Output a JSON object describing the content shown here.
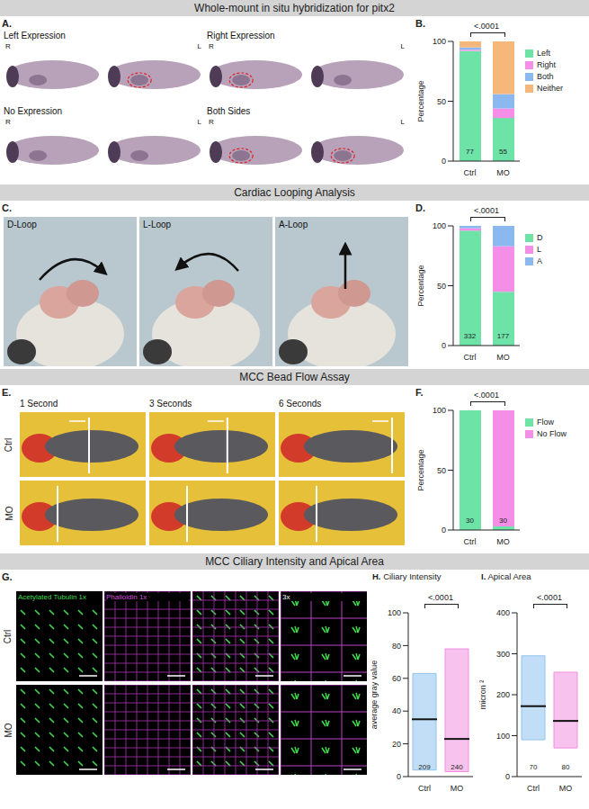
{
  "sections": [
    "Whole-mount in situ hybridization for pitx2",
    "Cardiac Looping Analysis",
    "MCC Bead Flow Assay",
    "MCC Ciliary Intensity and Apical Area"
  ],
  "panel_a": {
    "letter": "A.",
    "images": [
      "Left Expression",
      "Right Expression",
      "No Expression",
      "Both Sides"
    ],
    "left_side": "R",
    "right_side": "L"
  },
  "panel_c": {
    "letter": "C.",
    "images": [
      "D-Loop",
      "L-Loop",
      "A-Loop"
    ]
  },
  "panel_e": {
    "letter": "E.",
    "columns": [
      "1 Second",
      "3 Seconds",
      "6 Seconds"
    ],
    "rows": [
      "Ctrl",
      "MO"
    ]
  },
  "panel_g": {
    "letter": "G.",
    "labels": [
      "Acetylated Tubulin 1x",
      "Phalloidin 1x",
      "3x"
    ],
    "rows": [
      "Ctrl",
      "MO"
    ]
  },
  "chart_data": [
    {
      "letter": "B.",
      "type": "bar",
      "stacked": true,
      "categories": [
        "Ctrl",
        "MO"
      ],
      "n": [
        77,
        55
      ],
      "p_value": "<.0001",
      "ylabel": "Percentage",
      "ylim": [
        0,
        100
      ],
      "yticks": [
        0,
        50,
        100
      ],
      "grid": false,
      "legend": "right",
      "series": [
        {
          "name": "Left",
          "color": "#6ee3a8",
          "values": [
            92,
            36
          ]
        },
        {
          "name": "Right",
          "color": "#f58ee6",
          "values": [
            1,
            8
          ]
        },
        {
          "name": "Both",
          "color": "#8cb8f0",
          "values": [
            2,
            12
          ]
        },
        {
          "name": "Neither",
          "color": "#f5b77a",
          "values": [
            5,
            44
          ]
        }
      ]
    },
    {
      "letter": "D.",
      "type": "bar",
      "stacked": true,
      "categories": [
        "Ctrl",
        "MO"
      ],
      "n": [
        332,
        177
      ],
      "p_value": "<.0001",
      "ylabel": "Percentage",
      "ylim": [
        0,
        100
      ],
      "yticks": [
        0,
        50,
        100
      ],
      "grid": false,
      "legend": "right",
      "series": [
        {
          "name": "D",
          "color": "#6ee3a8",
          "values": [
            96,
            45
          ]
        },
        {
          "name": "L",
          "color": "#f58ee6",
          "values": [
            2,
            38
          ]
        },
        {
          "name": "A",
          "color": "#8cb8f0",
          "values": [
            2,
            17
          ]
        }
      ]
    },
    {
      "letter": "F.",
      "type": "bar",
      "stacked": true,
      "categories": [
        "Ctrl",
        "MO"
      ],
      "n": [
        30,
        30
      ],
      "p_value": "<.0001",
      "ylabel": "Percentage",
      "ylim": [
        0,
        100
      ],
      "yticks": [
        0,
        50,
        100
      ],
      "grid": false,
      "legend": "right",
      "series": [
        {
          "name": "Flow",
          "color": "#6ee3a8",
          "values": [
            100,
            3
          ]
        },
        {
          "name": "No Flow",
          "color": "#f58ee6",
          "values": [
            0,
            97
          ]
        }
      ]
    },
    {
      "letter": "H.",
      "title": "Ciliary Intensity",
      "type": "violin",
      "categories": [
        "Ctrl",
        "MO"
      ],
      "n": [
        209,
        240
      ],
      "min": [
        4,
        3
      ],
      "max": [
        63,
        78
      ],
      "median": [
        35,
        23
      ],
      "colors": [
        "#8ec3ef",
        "#f08fe0"
      ],
      "p_value": "<.0001",
      "ylabel": "average gray value",
      "ylim": [
        0,
        100
      ],
      "yticks": [
        0,
        20,
        40,
        60,
        80,
        100
      ],
      "grid": false
    },
    {
      "letter": "I.",
      "title": "Apical Area",
      "type": "violin",
      "categories": [
        "Ctrl",
        "MO"
      ],
      "n": [
        70,
        80
      ],
      "min": [
        90,
        70
      ],
      "max": [
        295,
        255
      ],
      "median": [
        172,
        136
      ],
      "colors": [
        "#8ec3ef",
        "#f08fe0"
      ],
      "p_value": "<.0001",
      "ylabel": "micron ²",
      "ylim": [
        0,
        400
      ],
      "yticks": [
        0,
        100,
        200,
        300,
        400
      ],
      "grid": false
    }
  ]
}
